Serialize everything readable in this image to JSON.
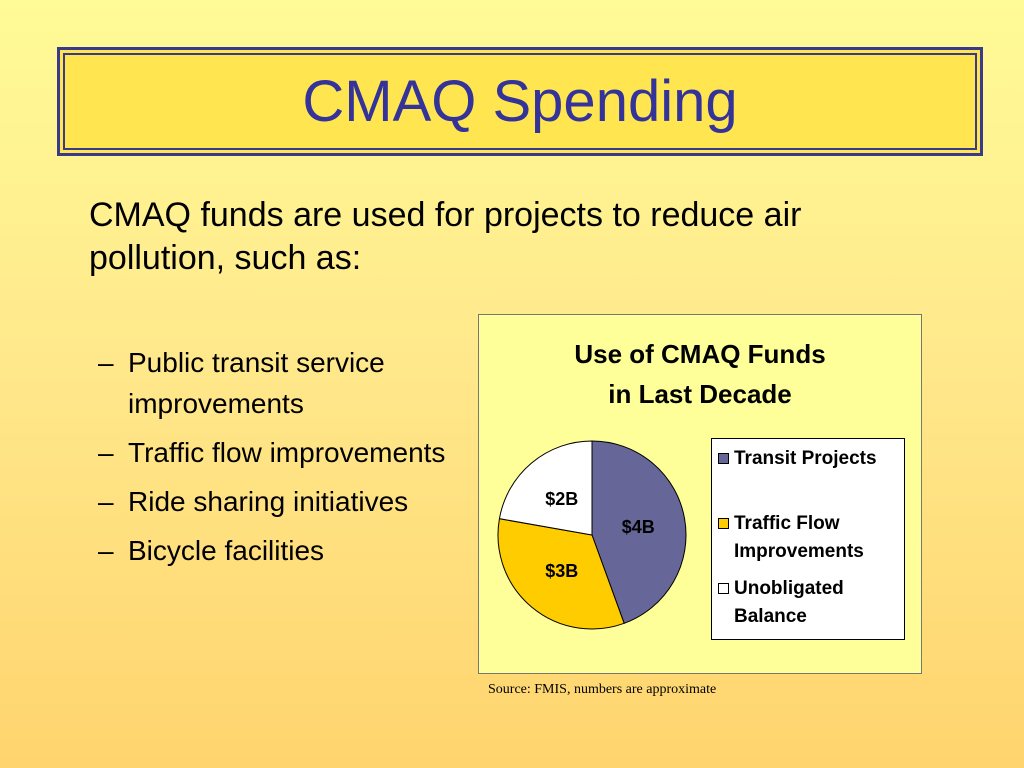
{
  "title": "CMAQ Spending",
  "intro": "CMAQ funds are used for projects to reduce air pollution, such as:",
  "bullets": [
    "Public transit service improvements",
    "Traffic flow improvements",
    "Ride sharing initiatives",
    "Bicycle facilities"
  ],
  "bullet_marker": "–",
  "chart_data": {
    "type": "pie",
    "title_lines": [
      "Use of CMAQ Funds",
      "in Last Decade"
    ],
    "categories": [
      "Transit Projects",
      "Traffic Flow Improvements",
      "Unobligated Balance"
    ],
    "values": [
      4,
      3,
      2
    ],
    "data_labels": [
      "$4B",
      "$3B",
      "$2B"
    ],
    "units": "billion dollars",
    "colors": [
      "#666699",
      "#ffcc00",
      "#ffffff"
    ],
    "legend_placement": "right"
  },
  "source": "Source: FMIS, numbers are approximate"
}
